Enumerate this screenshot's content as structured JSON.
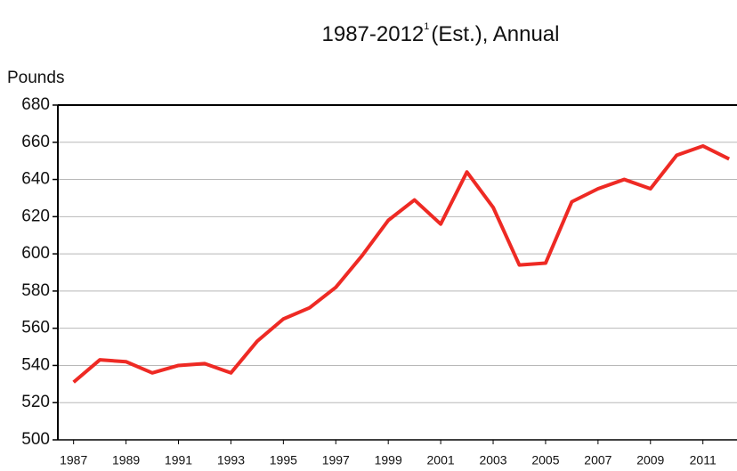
{
  "chart_data": {
    "type": "line",
    "title": "1987-2012",
    "title_footnote": "1",
    "title_suffix": "(Est.), Annual",
    "y_label": "Pounds",
    "x": [
      1987,
      1988,
      1989,
      1990,
      1991,
      1992,
      1993,
      1994,
      1995,
      1996,
      1997,
      1998,
      1999,
      2000,
      2001,
      2002,
      2003,
      2004,
      2005,
      2006,
      2007,
      2008,
      2009,
      2010,
      2011,
      2012
    ],
    "series": [
      {
        "color": "#ee2a24",
        "values": [
          531,
          543,
          542,
          536,
          540,
          541,
          536,
          553,
          565,
          571,
          582,
          599,
          618,
          629,
          616,
          644,
          625,
          594,
          595,
          628,
          635,
          640,
          635,
          653,
          658,
          651
        ]
      }
    ],
    "xlim": [
      1986.4,
      2012.3
    ],
    "xticks": [
      1987,
      1989,
      1991,
      1993,
      1995,
      1997,
      1999,
      2001,
      2003,
      2005,
      2007,
      2009,
      2011
    ],
    "ylim": [
      500,
      680
    ],
    "yticks": [
      500,
      520,
      540,
      560,
      580,
      600,
      620,
      640,
      660,
      680
    ],
    "grid": true
  }
}
